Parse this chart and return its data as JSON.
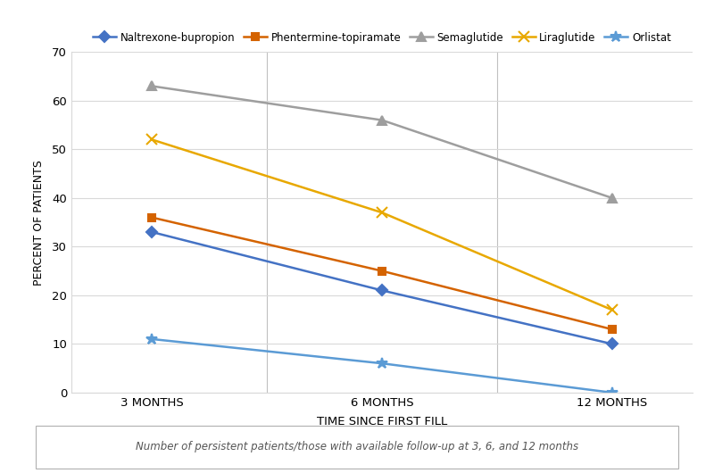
{
  "x_labels": [
    "3 MONTHS",
    "6 MONTHS",
    "12 MONTHS"
  ],
  "x_positions": [
    0,
    1,
    2
  ],
  "series": [
    {
      "name": "Naltrexone-bupropion",
      "values": [
        33,
        21,
        10
      ],
      "color": "#4472C4",
      "marker": "D",
      "linestyle": "-",
      "markersize": 6
    },
    {
      "name": "Phentermine-topiramate",
      "values": [
        36,
        25,
        13
      ],
      "color": "#D46300",
      "marker": "s",
      "linestyle": "-",
      "markersize": 6
    },
    {
      "name": "Semaglutide",
      "values": [
        63,
        56,
        40
      ],
      "color": "#9E9E9E",
      "marker": "^",
      "linestyle": "-",
      "markersize": 7
    },
    {
      "name": "Liraglutide",
      "values": [
        52,
        37,
        17
      ],
      "color": "#E8A800",
      "marker": "x",
      "linestyle": "-",
      "markersize": 8
    },
    {
      "name": "Orlistat",
      "values": [
        11,
        6,
        0
      ],
      "color": "#5B9BD5",
      "marker": "*",
      "linestyle": "-",
      "markersize": 9
    }
  ],
  "xlabel": "TIME SINCE FIRST FILL",
  "ylabel": "PERCENT OF PATIENTS",
  "ylim": [
    0,
    70
  ],
  "yticks": [
    0,
    10,
    20,
    30,
    40,
    50,
    60,
    70
  ],
  "footnote": "Number of persistent patients/those with available follow-up at 3, 6, and 12 months",
  "background_color": "#ffffff",
  "grid_color": "#d9d9d9",
  "vline_color": "#c0c0c0"
}
